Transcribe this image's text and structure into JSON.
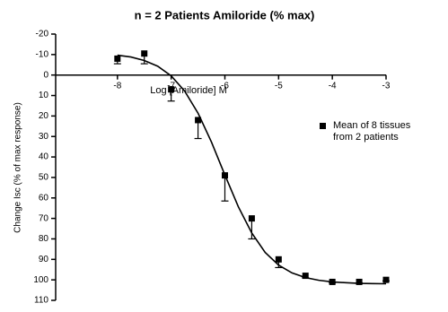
{
  "chart_data": {
    "type": "scatter",
    "title": "n = 2 Patients Amiloride (% max)",
    "x_label": "Log [Amiloride] M",
    "y_label": "Change Isc (% of max response)",
    "xlim": [
      -9.15,
      -3
    ],
    "xticks": [
      -8,
      -7,
      -6,
      -5,
      -4,
      -3
    ],
    "ylim": [
      -20,
      110
    ],
    "yticks": [
      -20,
      -10,
      0,
      10,
      20,
      30,
      40,
      50,
      60,
      70,
      80,
      90,
      100,
      110
    ],
    "y_inverted": true,
    "series": [
      {
        "name": "Mean of 8 tissues from 2 patients",
        "color": "#000000",
        "x": [
          -8,
          -7.5,
          -7,
          -6.5,
          -6,
          -5.5,
          -5,
          -4.5,
          -4,
          -3.5,
          -3
        ],
        "values": [
          -8,
          -10.5,
          7,
          22,
          49,
          70,
          90,
          98,
          101,
          101,
          100
        ],
        "errors": [
          2.5,
          5,
          5.7,
          9,
          12.5,
          10,
          4,
          1,
          0.5,
          0.5,
          0.5
        ]
      }
    ],
    "fit_curve": {
      "color": "#000000",
      "x": [
        -8,
        -7.75,
        -7.5,
        -7.25,
        -7,
        -6.75,
        -6.5,
        -6.25,
        -6,
        -5.75,
        -5.5,
        -5.25,
        -5,
        -4.75,
        -4.5,
        -4.25,
        -4,
        -3.75,
        -3.5,
        -3.25,
        -3
      ],
      "values": [
        -9.7,
        -8.8,
        -7.1,
        -4.3,
        0.4,
        7.8,
        18.6,
        32.7,
        48.8,
        64.3,
        77.1,
        86.6,
        92.8,
        96.6,
        98.9,
        100.2,
        101.0,
        101.4,
        101.7,
        101.8,
        101.9
      ]
    },
    "legend": "right"
  }
}
